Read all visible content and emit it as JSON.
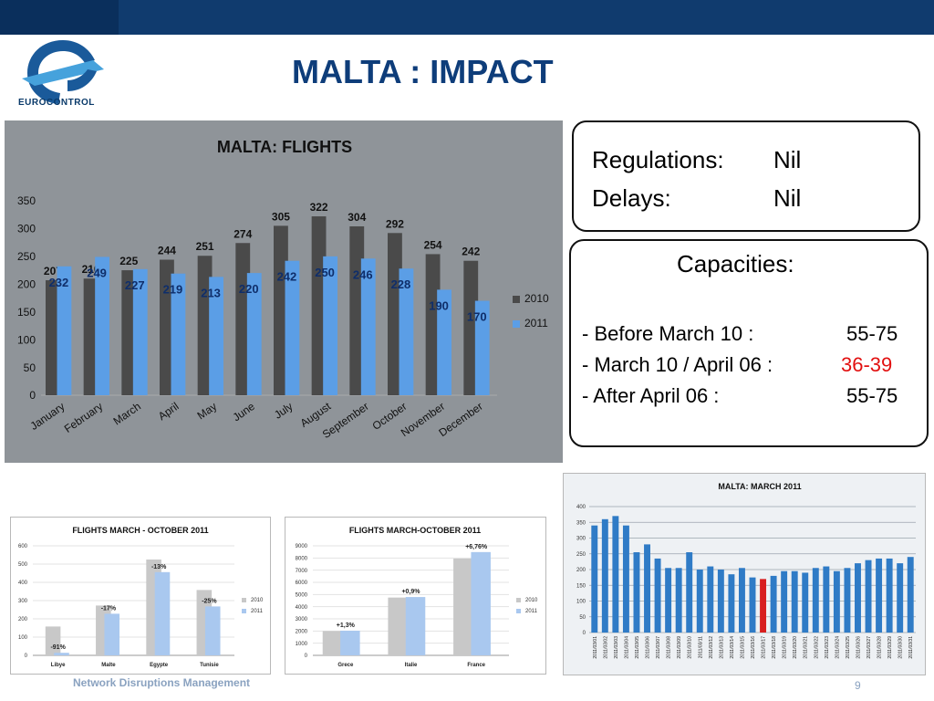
{
  "header": {
    "title": "MALTA : IMPACT",
    "logo_text": "EUROCONTROL"
  },
  "info": {
    "regulations_label": "Regulations:",
    "regulations_value": "Nil",
    "delays_label": "Delays:",
    "delays_value": "Nil",
    "capacities_title": "Capacities:",
    "rows": [
      {
        "label": "- Before March 10 :",
        "value": "55-75",
        "highlight": false
      },
      {
        "label": "- March 10 / April 06 :",
        "value": "36-39",
        "highlight": true
      },
      {
        "label": "-  After April 06 :",
        "value": "55-75",
        "highlight": false
      }
    ]
  },
  "footer": {
    "left": "Network Disruptions Management",
    "page": "9"
  },
  "chart_data": [
    {
      "type": "bar",
      "title": "MALTA: FLIGHTS",
      "categories": [
        "January",
        "February",
        "March",
        "April",
        "May",
        "June",
        "July",
        "August",
        "September",
        "October",
        "November",
        "December"
      ],
      "series": [
        {
          "name": "2010",
          "color": "#4a4a4a",
          "values": [
            207,
            210,
            225,
            244,
            251,
            274,
            305,
            322,
            304,
            292,
            254,
            242
          ]
        },
        {
          "name": "2011",
          "color": "#5b9ee6",
          "values": [
            232,
            249,
            227,
            219,
            213,
            220,
            242,
            250,
            246,
            228,
            190,
            170
          ]
        }
      ],
      "ylim": [
        0,
        350
      ],
      "yticks": [
        0,
        50,
        100,
        150,
        200,
        250,
        300,
        350
      ],
      "legend": "right"
    },
    {
      "type": "bar",
      "title": "FLIGHTS   MARCH - OCTOBER 2011",
      "categories": [
        "Libye",
        "Malte",
        "Egypte",
        "Tunisie"
      ],
      "series": [
        {
          "name": "2010",
          "color": "#c8c8c8",
          "values": [
            158,
            273,
            525,
            358
          ]
        },
        {
          "name": "2011",
          "color": "#a9c8ef",
          "values": [
            14,
            228,
            456,
            268
          ]
        }
      ],
      "labels": [
        "-91%",
        "-17%",
        "-13%",
        "-25%"
      ],
      "ylim": [
        0,
        600
      ],
      "yticks": [
        0,
        100,
        200,
        300,
        400,
        500,
        600
      ],
      "legend": "right"
    },
    {
      "type": "bar",
      "title": "FLIGHTS  MARCH-OCTOBER 2011",
      "categories": [
        "Grece",
        "Italie",
        "France"
      ],
      "series": [
        {
          "name": "2010",
          "color": "#c8c8c8",
          "values": [
            2000,
            4750,
            7950
          ]
        },
        {
          "name": "2011",
          "color": "#a9c8ef",
          "values": [
            2026,
            4793,
            8487
          ]
        }
      ],
      "labels": [
        "+1,3%",
        "+0,9%",
        "+6,76%"
      ],
      "ylim": [
        0,
        9000
      ],
      "yticks": [
        0,
        1000,
        2000,
        3000,
        4000,
        5000,
        6000,
        7000,
        8000,
        9000
      ],
      "legend": "right"
    },
    {
      "type": "bar",
      "title": "MALTA: MARCH 2011",
      "categories": [
        "2011/03/01",
        "2011/03/02",
        "2011/03/03",
        "2011/03/04",
        "2011/03/05",
        "2011/03/06",
        "2011/03/07",
        "2011/03/08",
        "2011/03/09",
        "2011/03/10",
        "2011/03/11",
        "2011/03/12",
        "2011/03/13",
        "2011/03/14",
        "2011/03/15",
        "2011/03/16",
        "2011/03/17",
        "2011/03/18",
        "2011/03/19",
        "2011/03/20",
        "2011/03/21",
        "2011/03/22",
        "2011/03/23",
        "2011/03/24",
        "2011/03/25",
        "2011/03/26",
        "2011/03/27",
        "2011/03/28",
        "2011/03/29",
        "2011/03/30",
        "2011/03/31"
      ],
      "values": [
        340,
        360,
        370,
        340,
        255,
        280,
        235,
        205,
        205,
        255,
        200,
        210,
        200,
        185,
        205,
        175,
        170,
        180,
        195,
        195,
        190,
        205,
        210,
        195,
        205,
        220,
        230,
        235,
        235,
        220,
        240
      ],
      "bar_color": "#2f7bc6",
      "highlight_index": 16,
      "highlight_color": "#d81e1e",
      "ylim": [
        0,
        400
      ],
      "yticks": [
        0,
        50,
        100,
        150,
        200,
        250,
        300,
        350,
        400
      ]
    }
  ]
}
